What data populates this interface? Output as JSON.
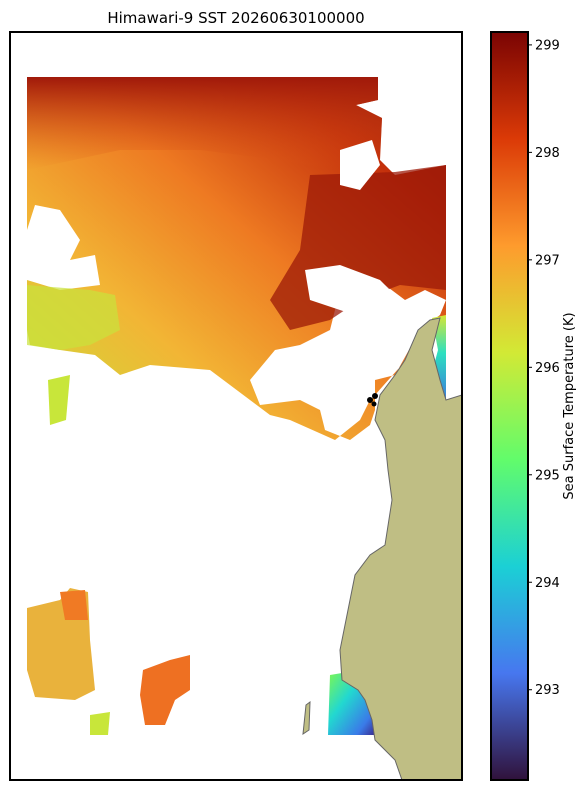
{
  "chart_data": {
    "type": "map",
    "title": "Himawari-9 SST 20260630100000",
    "colorbar": {
      "label": "Sea Surface Temperature (K)",
      "clim": [
        292.16,
        299.12
      ],
      "cticks": [
        293,
        294,
        295,
        296,
        297,
        298,
        299
      ],
      "colors": [
        "#30123b",
        "#4777ef",
        "#1bd0d5",
        "#62fc6b",
        "#d2e935",
        "#fe9b2d",
        "#db3a07",
        "#7a0403"
      ]
    }
  }
}
